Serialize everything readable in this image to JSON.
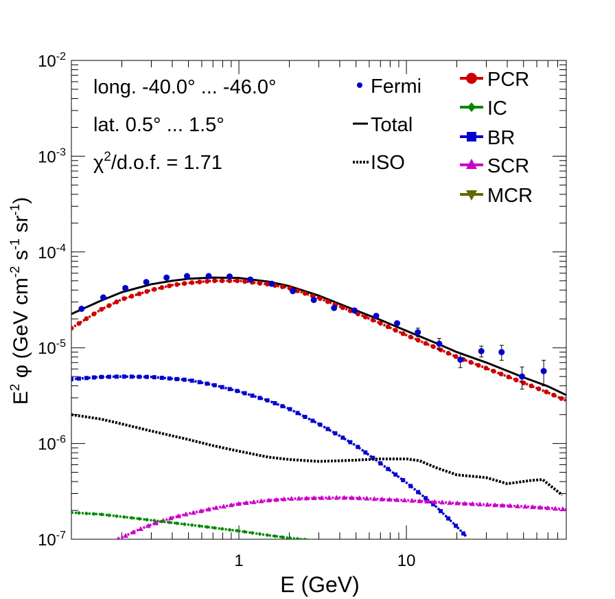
{
  "chart_data": {
    "type": "scatter",
    "xlabel": "E (GeV)",
    "ylabel": {
      "prefix": "E",
      "sup1": "2",
      "phi": " φ (GeV cm",
      "sup2": "-2",
      "s": " s",
      "sup3": "-1",
      "sr": " sr",
      "sup4": "-1",
      "close": ")"
    },
    "xscale": "log",
    "yscale": "log",
    "xlim": [
      0.1,
      90
    ],
    "ylim": [
      1e-07,
      0.01
    ],
    "x_ticks": [
      {
        "value": 1,
        "label": "1"
      },
      {
        "value": 10,
        "label": "10"
      }
    ],
    "y_ticks": [
      {
        "value": 1e-07,
        "base": "10",
        "exp": "-7"
      },
      {
        "value": 1e-06,
        "base": "10",
        "exp": "-6"
      },
      {
        "value": 1e-05,
        "base": "10",
        "exp": "-5"
      },
      {
        "value": 0.0001,
        "base": "10",
        "exp": "-4"
      },
      {
        "value": 0.001,
        "base": "10",
        "exp": "-3"
      },
      {
        "value": 0.01,
        "base": "10",
        "exp": "-2"
      }
    ],
    "annotations": {
      "longitude": "long. -40.0° ... -46.0°",
      "latitude": "lat. 0.5° ... 1.5°",
      "chi_prefix": "χ",
      "chi_sup": "2",
      "chi_rest": "/d.o.f. = 1.71"
    },
    "legend_left": [
      {
        "label": "Fermi",
        "color": "#0000cc",
        "style": "dot"
      },
      {
        "label": "Total",
        "color": "#000000",
        "style": "line"
      },
      {
        "label": "ISO",
        "color": "#000000",
        "style": "dotted"
      }
    ],
    "legend_right": [
      {
        "label": "PCR",
        "color": "#cc0000",
        "marker": "circle"
      },
      {
        "label": "IC",
        "color": "#008800",
        "marker": "diamond"
      },
      {
        "label": "BR",
        "color": "#0000cc",
        "marker": "square"
      },
      {
        "label": "SCR",
        "color": "#cc00cc",
        "marker": "triangle-up"
      },
      {
        "label": "MCR",
        "color": "#666600",
        "marker": "triangle-down"
      }
    ],
    "series": [
      {
        "name": "Total",
        "color": "#000000",
        "style": "line",
        "x": [
          0.1,
          0.15,
          0.2,
          0.3,
          0.4,
          0.5,
          0.7,
          1.0,
          1.5,
          2.0,
          3.0,
          5.0,
          7.0,
          10,
          15,
          20,
          30,
          50,
          70,
          90
        ],
        "y": [
          2.25e-05,
          3.1e-05,
          3.8e-05,
          4.6e-05,
          5e-05,
          5.25e-05,
          5.4e-05,
          5.35e-05,
          4.9e-05,
          4.4e-05,
          3.5e-05,
          2.45e-05,
          1.95e-05,
          1.5e-05,
          1.12e-05,
          9e-06,
          7e-06,
          4.9e-06,
          3.95e-06,
          3.2e-06
        ]
      },
      {
        "name": "PCR",
        "color": "#cc0000",
        "style": "dotted-marker",
        "x": [
          0.1,
          0.15,
          0.2,
          0.3,
          0.4,
          0.5,
          0.7,
          1.0,
          1.5,
          2.0,
          3.0,
          5.0,
          7.0,
          10,
          15,
          20,
          30,
          50,
          70,
          90
        ],
        "y": [
          1.6e-05,
          2.5e-05,
          3.2e-05,
          4e-05,
          4.5e-05,
          4.75e-05,
          5e-05,
          5e-05,
          4.6e-05,
          4.2e-05,
          3.3e-05,
          2.3e-05,
          1.8e-05,
          1.35e-05,
          1e-05,
          8e-06,
          6.1e-06,
          4.3e-06,
          3.4e-06,
          2.8e-06
        ]
      },
      {
        "name": "BR",
        "color": "#0000cc",
        "style": "dotted-marker",
        "x": [
          0.1,
          0.15,
          0.2,
          0.3,
          0.5,
          0.7,
          1.0,
          1.5,
          2.0,
          3.0,
          4.0,
          5.0,
          7.0,
          10,
          15,
          20,
          23
        ],
        "y": [
          4.7e-06,
          4.95e-06,
          5e-06,
          4.95e-06,
          4.6e-06,
          4.1e-06,
          3.5e-06,
          2.8e-06,
          2.3e-06,
          1.6e-06,
          1.2e-06,
          9.5e-07,
          6.2e-07,
          3.9e-07,
          2.2e-07,
          1.35e-07,
          1.05e-07
        ]
      },
      {
        "name": "ISO",
        "color": "#000000",
        "style": "dotted",
        "x": [
          0.1,
          0.15,
          0.2,
          0.3,
          0.5,
          0.7,
          1.0,
          1.5,
          2.0,
          3.0,
          4.0,
          5.0,
          7.0,
          10,
          12,
          15,
          20,
          30,
          40,
          55,
          65,
          85
        ],
        "y": [
          2e-06,
          1.8e-06,
          1.6e-06,
          1.35e-06,
          1.1e-06,
          9.5e-07,
          8.3e-07,
          7.2e-07,
          6.8e-07,
          6.5e-07,
          6.6e-07,
          6.7e-07,
          6.9e-07,
          6.9e-07,
          6.6e-07,
          5.6e-07,
          4.7e-07,
          4.4e-07,
          3.8e-07,
          4.1e-07,
          4.2e-07,
          2.9e-07
        ]
      },
      {
        "name": "SCR",
        "color": "#cc00cc",
        "style": "dotted-marker",
        "x": [
          0.19,
          0.25,
          0.3,
          0.4,
          0.5,
          0.7,
          1.0,
          1.5,
          2.0,
          3.0,
          4.0,
          5.0,
          7.0,
          10,
          15,
          20,
          30,
          50,
          70,
          90
        ],
        "y": [
          1e-07,
          1.25e-07,
          1.42e-07,
          1.68e-07,
          1.85e-07,
          2.1e-07,
          2.35e-07,
          2.55e-07,
          2.65e-07,
          2.7e-07,
          2.72e-07,
          2.7e-07,
          2.62e-07,
          2.55e-07,
          2.45e-07,
          2.38e-07,
          2.3e-07,
          2.2e-07,
          2.12e-07,
          2.05e-07
        ]
      },
      {
        "name": "IC",
        "color": "#008800",
        "style": "dotted-marker",
        "x": [
          0.1,
          0.15,
          0.2,
          0.3,
          0.5,
          0.7,
          1.0,
          1.5,
          2.0,
          2.7
        ],
        "y": [
          1.9e-07,
          1.82e-07,
          1.72e-07,
          1.58e-07,
          1.42e-07,
          1.32e-07,
          1.22e-07,
          1.1e-07,
          1.03e-07,
          9.8e-08
        ]
      },
      {
        "name": "Fermi",
        "color": "#0000cc",
        "style": "points",
        "x": [
          0.115,
          0.155,
          0.21,
          0.28,
          0.37,
          0.49,
          0.66,
          0.88,
          1.17,
          1.57,
          2.1,
          2.8,
          3.7,
          4.9,
          6.6,
          8.8,
          11.7,
          15.7,
          21,
          28,
          37,
          49,
          66
        ],
        "y": [
          2.55e-05,
          3.35e-05,
          4.2e-05,
          4.85e-05,
          5.4e-05,
          5.6e-05,
          5.6e-05,
          5.55e-05,
          5.15e-05,
          4.65e-05,
          3.9e-05,
          3.15e-05,
          2.6e-05,
          2.45e-05,
          2.15e-05,
          1.8e-05,
          1.45e-05,
          1.1e-05,
          7.5e-06,
          9.2e-06,
          9e-06,
          5e-06,
          5.7e-06
        ],
        "err": [
          0,
          0,
          0,
          0,
          0,
          0,
          0,
          0,
          0,
          0,
          0,
          0,
          0,
          0,
          0,
          0,
          1.5e-06,
          1.5e-06,
          1.3e-06,
          1.2e-06,
          1.6e-06,
          1.3e-06,
          1.7e-06
        ]
      }
    ]
  }
}
